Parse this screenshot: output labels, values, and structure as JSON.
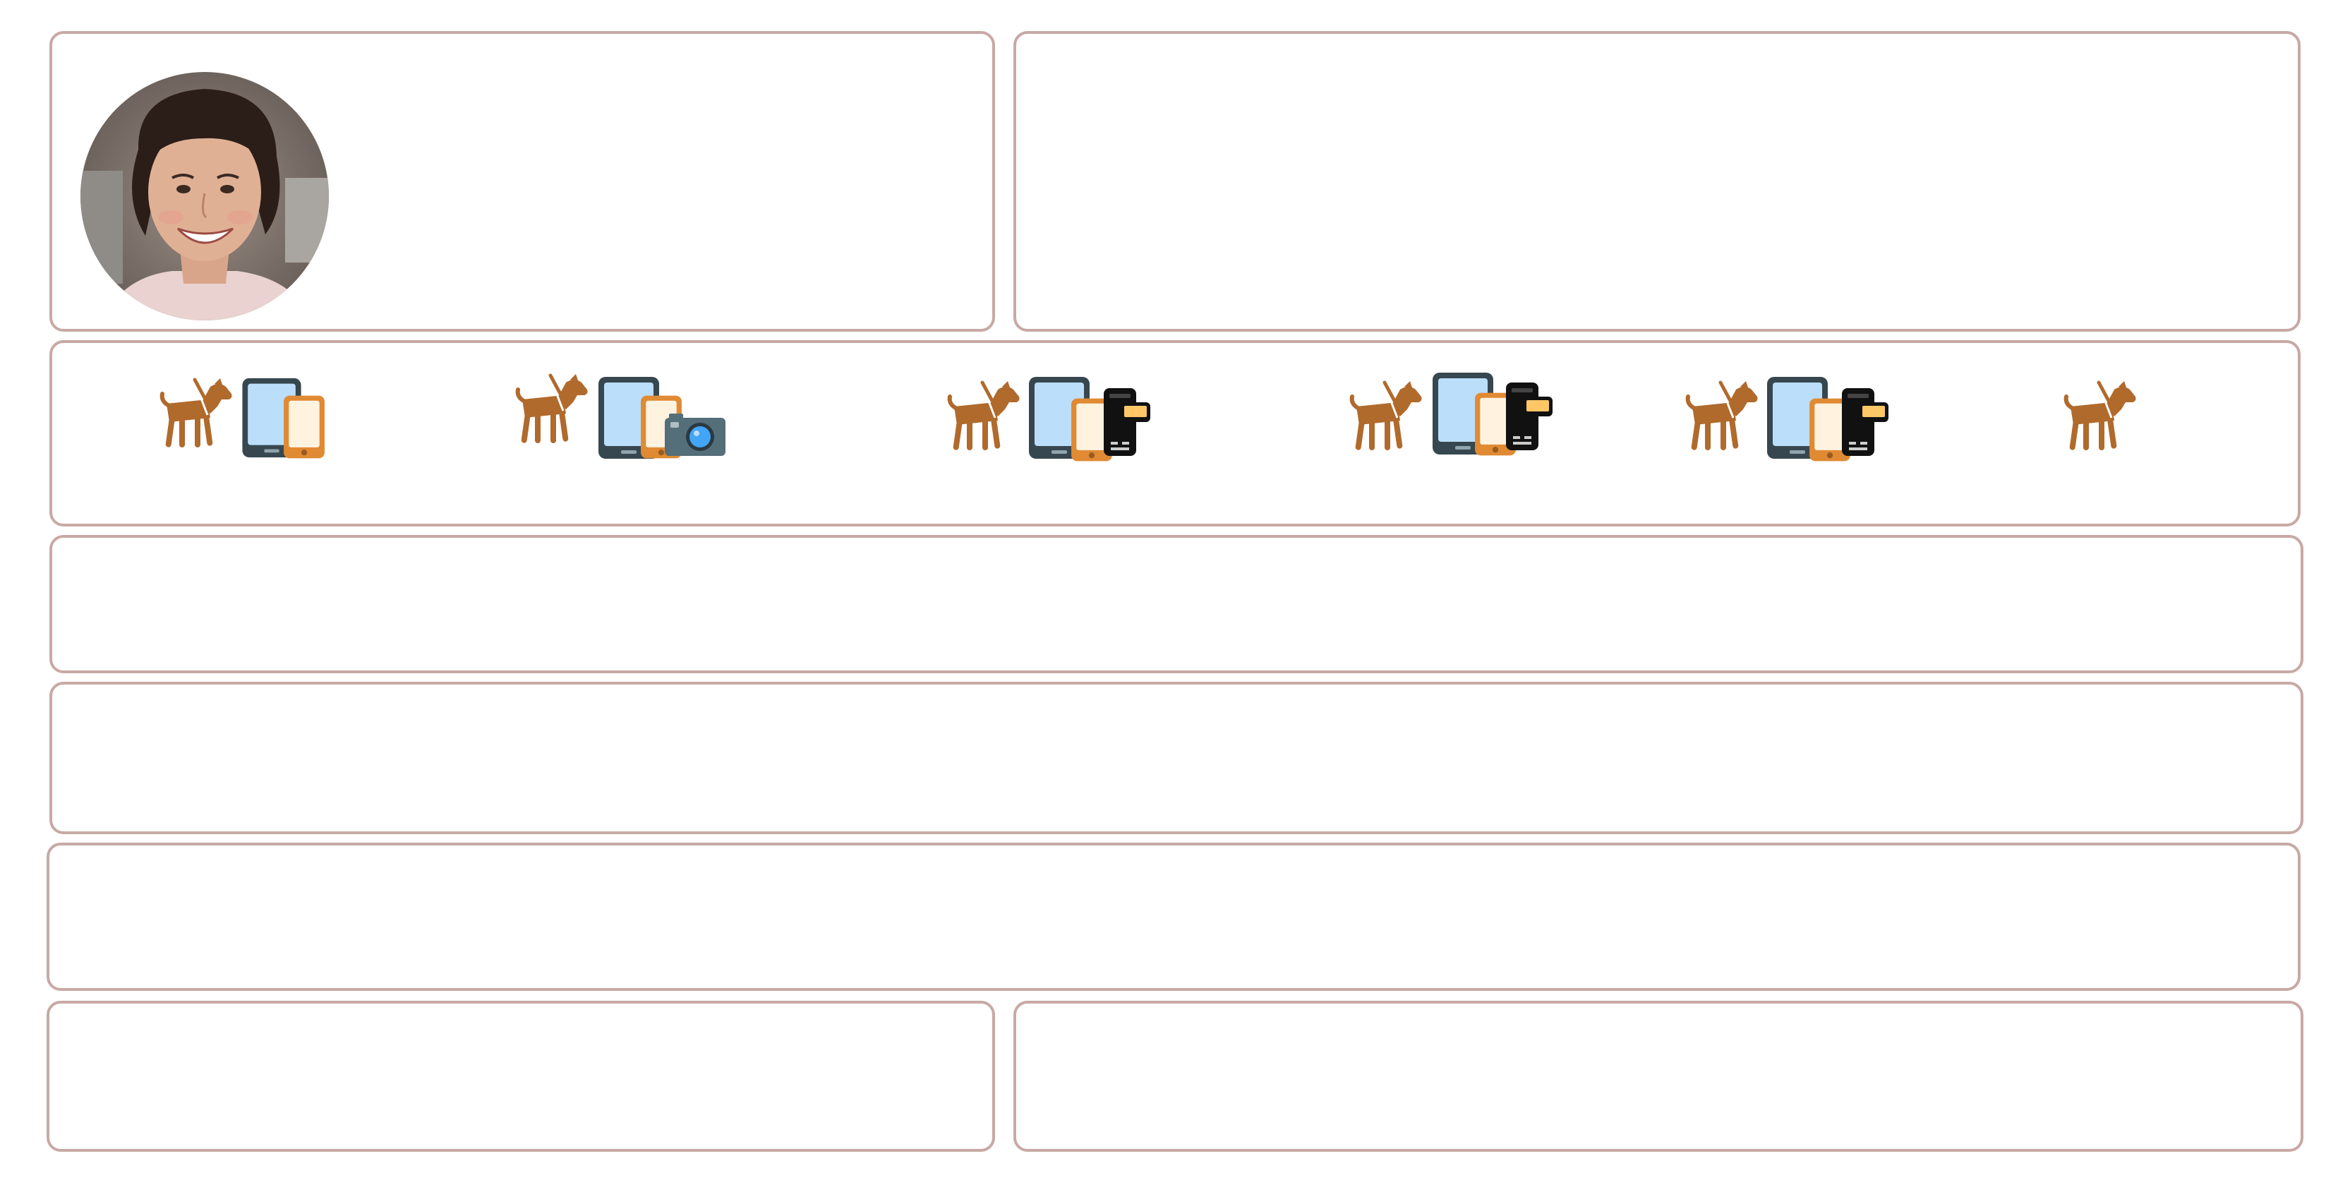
{
  "profile": {
    "avatar_icon": "person-photo"
  },
  "device_groups": [
    {
      "icons": [
        "dog-icon",
        "tablet-icon",
        "phone-icon"
      ]
    },
    {
      "icons": [
        "dog-icon",
        "tablet-icon",
        "phone-icon",
        "camera-icon"
      ]
    },
    {
      "icons": [
        "dog-icon",
        "tablet-icon",
        "phone-icon",
        "feature-phone-icon"
      ]
    },
    {
      "icons": [
        "dog-icon",
        "tablet-icon",
        "phone-icon",
        "feature-phone-icon"
      ]
    },
    {
      "icons": [
        "dog-icon",
        "tablet-icon",
        "phone-icon",
        "feature-phone-icon"
      ]
    },
    {
      "icons": [
        "dog-icon"
      ]
    }
  ],
  "colors": {
    "card_border": "#c7a9a4",
    "dog": "#b06a2c",
    "tablet_frame": "#37474f",
    "tablet_screen": "#bbdefb",
    "phone_frame": "#e08a33",
    "phone_screen": "#fff3e0",
    "feature_phone": "#111111",
    "feature_phone_screen": "#ffc766",
    "camera_body": "#546e7a",
    "camera_lens": "#42a5f5"
  }
}
